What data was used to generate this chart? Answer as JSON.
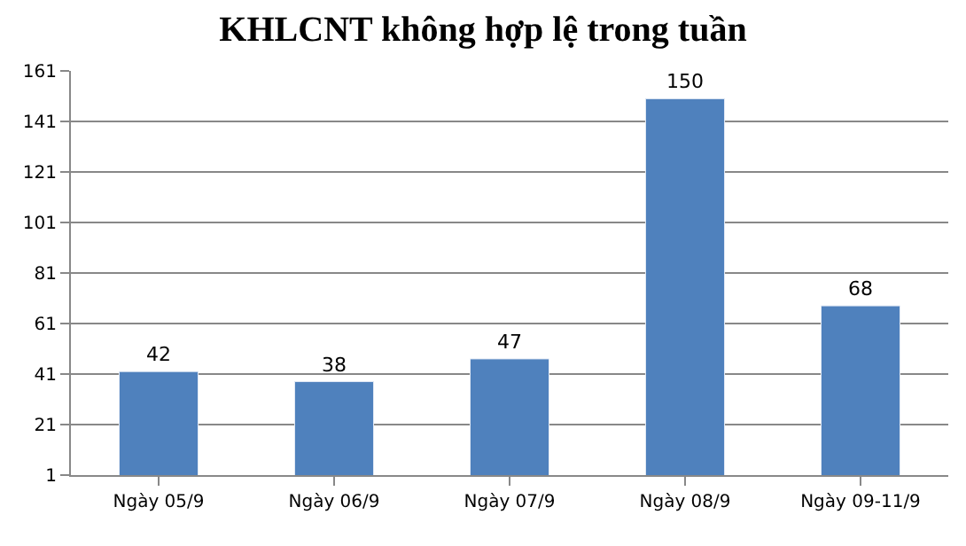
{
  "chart_data": {
    "type": "bar",
    "title": "KHLCNT không hợp lệ trong tuần",
    "categories": [
      "Ngày 05/9",
      "Ngày 06/9",
      "Ngày 07/9",
      "Ngày 08/9",
      "Ngày 09-11/9"
    ],
    "values": [
      42,
      38,
      47,
      150,
      68
    ],
    "color": "#4f81bd",
    "ylim": [
      1,
      161
    ],
    "yticks": [
      1,
      21,
      41,
      61,
      81,
      101,
      121,
      141,
      161
    ],
    "grid": "y",
    "data_labels": true
  }
}
